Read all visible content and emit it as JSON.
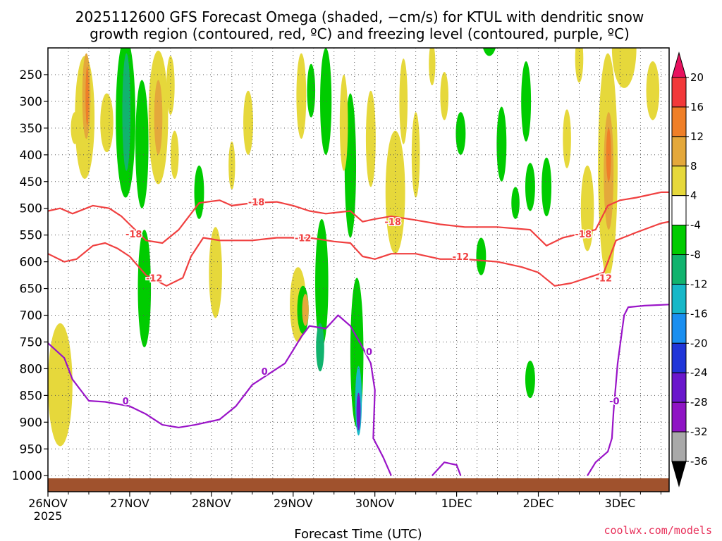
{
  "chart_data": {
    "type": "heatmap",
    "title_lines": [
      "2025112600 GFS Forecast Omega (shaded, −cm/s) for KTUL with dendritic snow",
      "growth region (contoured, red, ºC) and freezing level (contoured, purple, ºC)"
    ],
    "xlabel": "Forecast Time (UTC)",
    "year_label": "2025",
    "credit": "coolwx.com/models",
    "x_range_days": [
      0,
      7.6
    ],
    "x_ticks": [
      {
        "day": 0,
        "label": "26NOV"
      },
      {
        "day": 1,
        "label": "27NOV"
      },
      {
        "day": 2,
        "label": "28NOV"
      },
      {
        "day": 3,
        "label": "29NOV"
      },
      {
        "day": 4,
        "label": "30NOV"
      },
      {
        "day": 5,
        "label": "1DEC"
      },
      {
        "day": 6,
        "label": "2DEC"
      },
      {
        "day": 7,
        "label": "3DEC"
      }
    ],
    "y_range_hpa": [
      200,
      1030
    ],
    "y_ticks": [
      250,
      300,
      350,
      400,
      450,
      500,
      550,
      600,
      650,
      700,
      750,
      800,
      850,
      900,
      950,
      1000
    ],
    "colorbar": {
      "labels": [
        "20",
        "16",
        "12",
        "8",
        "4",
        "-4",
        "-8",
        "-12",
        "-16",
        "-20",
        "-24",
        "-28",
        "-32",
        "-36"
      ],
      "colors": [
        "#e8115e",
        "#f2393a",
        "#ef7f28",
        "#e4a83b",
        "#e6d83b",
        "#ffffff",
        "#00cc00",
        "#11b36e",
        "#17b8c8",
        "#1a8ff0",
        "#2035d8",
        "#6a17cc",
        "#8f14c4",
        "#a9a9a9",
        "#000000"
      ]
    },
    "omega_blobs": [
      {
        "day": 0.45,
        "p": 330,
        "w": 0.12,
        "h": 230,
        "c": "#e6d83b"
      },
      {
        "day": 0.47,
        "p": 290,
        "w": 0.05,
        "h": 160,
        "c": "#e4a83b"
      },
      {
        "day": 0.48,
        "p": 290,
        "w": 0.02,
        "h": 110,
        "c": "#ef7f28"
      },
      {
        "day": 0.72,
        "p": 340,
        "w": 0.08,
        "h": 110,
        "c": "#e6d83b"
      },
      {
        "day": 0.15,
        "p": 830,
        "w": 0.15,
        "h": 230,
        "c": "#e6d83b"
      },
      {
        "day": 0.33,
        "p": 350,
        "w": 0.05,
        "h": 60,
        "c": "#e6d83b"
      },
      {
        "day": 0.95,
        "p": 330,
        "w": 0.12,
        "h": 300,
        "c": "#00cc00"
      },
      {
        "day": 0.96,
        "p": 320,
        "w": 0.05,
        "h": 220,
        "c": "#11b36e"
      },
      {
        "day": 1.15,
        "p": 380,
        "w": 0.08,
        "h": 240,
        "c": "#00cc00"
      },
      {
        "day": 1.35,
        "p": 330,
        "w": 0.12,
        "h": 250,
        "c": "#e6d83b"
      },
      {
        "day": 1.35,
        "p": 330,
        "w": 0.05,
        "h": 140,
        "c": "#e4a83b"
      },
      {
        "day": 1.5,
        "p": 270,
        "w": 0.05,
        "h": 110,
        "c": "#e6d83b"
      },
      {
        "day": 1.18,
        "p": 650,
        "w": 0.08,
        "h": 220,
        "c": "#00cc00"
      },
      {
        "day": 1.55,
        "p": 400,
        "w": 0.05,
        "h": 90,
        "c": "#e6d83b"
      },
      {
        "day": 1.85,
        "p": 470,
        "w": 0.06,
        "h": 100,
        "c": "#00cc00"
      },
      {
        "day": 2.45,
        "p": 340,
        "w": 0.06,
        "h": 120,
        "c": "#e6d83b"
      },
      {
        "day": 2.05,
        "p": 620,
        "w": 0.08,
        "h": 170,
        "c": "#e6d83b"
      },
      {
        "day": 2.25,
        "p": 420,
        "w": 0.04,
        "h": 90,
        "c": "#e6d83b"
      },
      {
        "day": 3.1,
        "p": 290,
        "w": 0.06,
        "h": 160,
        "c": "#e6d83b"
      },
      {
        "day": 3.22,
        "p": 280,
        "w": 0.05,
        "h": 100,
        "c": "#00cc00"
      },
      {
        "day": 3.4,
        "p": 300,
        "w": 0.07,
        "h": 200,
        "c": "#00cc00"
      },
      {
        "day": 3.06,
        "p": 680,
        "w": 0.1,
        "h": 140,
        "c": "#e6d83b"
      },
      {
        "day": 3.12,
        "p": 690,
        "w": 0.07,
        "h": 90,
        "c": "#00cc00"
      },
      {
        "day": 3.15,
        "p": 690,
        "w": 0.04,
        "h": 60,
        "c": "#e4a83b"
      },
      {
        "day": 3.35,
        "p": 640,
        "w": 0.08,
        "h": 240,
        "c": "#00cc00"
      },
      {
        "day": 3.33,
        "p": 760,
        "w": 0.05,
        "h": 90,
        "c": "#11b36e"
      },
      {
        "day": 3.7,
        "p": 420,
        "w": 0.07,
        "h": 270,
        "c": "#00cc00"
      },
      {
        "day": 3.78,
        "p": 770,
        "w": 0.08,
        "h": 280,
        "c": "#00cc00"
      },
      {
        "day": 3.8,
        "p": 860,
        "w": 0.04,
        "h": 130,
        "c": "#17b8c8"
      },
      {
        "day": 3.8,
        "p": 880,
        "w": 0.025,
        "h": 70,
        "c": "#6a17cc"
      },
      {
        "day": 3.62,
        "p": 340,
        "w": 0.05,
        "h": 180,
        "c": "#e6d83b"
      },
      {
        "day": 3.95,
        "p": 370,
        "w": 0.06,
        "h": 180,
        "c": "#e6d83b"
      },
      {
        "day": 4.25,
        "p": 470,
        "w": 0.12,
        "h": 230,
        "c": "#e6d83b"
      },
      {
        "day": 4.35,
        "p": 300,
        "w": 0.05,
        "h": 160,
        "c": "#e6d83b"
      },
      {
        "day": 4.5,
        "p": 400,
        "w": 0.05,
        "h": 160,
        "c": "#e6d83b"
      },
      {
        "day": 4.85,
        "p": 290,
        "w": 0.05,
        "h": 90,
        "c": "#e6d83b"
      },
      {
        "day": 5.05,
        "p": 360,
        "w": 0.06,
        "h": 80,
        "c": "#00cc00"
      },
      {
        "day": 4.7,
        "p": 230,
        "w": 0.04,
        "h": 80,
        "c": "#e6d83b"
      },
      {
        "day": 5.4,
        "p": 175,
        "w": 0.1,
        "h": 80,
        "c": "#00cc00"
      },
      {
        "day": 5.55,
        "p": 380,
        "w": 0.06,
        "h": 140,
        "c": "#00cc00"
      },
      {
        "day": 5.85,
        "p": 300,
        "w": 0.06,
        "h": 150,
        "c": "#00cc00"
      },
      {
        "day": 5.3,
        "p": 590,
        "w": 0.06,
        "h": 70,
        "c": "#00cc00"
      },
      {
        "day": 5.72,
        "p": 490,
        "w": 0.05,
        "h": 60,
        "c": "#00cc00"
      },
      {
        "day": 5.9,
        "p": 460,
        "w": 0.06,
        "h": 90,
        "c": "#00cc00"
      },
      {
        "day": 6.1,
        "p": 460,
        "w": 0.06,
        "h": 110,
        "c": "#00cc00"
      },
      {
        "day": 5.9,
        "p": 820,
        "w": 0.06,
        "h": 70,
        "c": "#00cc00"
      },
      {
        "day": 6.35,
        "p": 370,
        "w": 0.05,
        "h": 110,
        "c": "#e6d83b"
      },
      {
        "day": 6.5,
        "p": 220,
        "w": 0.05,
        "h": 90,
        "c": "#e6d83b"
      },
      {
        "day": 6.6,
        "p": 500,
        "w": 0.08,
        "h": 160,
        "c": "#e6d83b"
      },
      {
        "day": 6.85,
        "p": 420,
        "w": 0.12,
        "h": 420,
        "c": "#e6d83b"
      },
      {
        "day": 6.86,
        "p": 430,
        "w": 0.06,
        "h": 220,
        "c": "#e4a83b"
      },
      {
        "day": 6.86,
        "p": 400,
        "w": 0.03,
        "h": 100,
        "c": "#ef7f28"
      },
      {
        "day": 7.05,
        "p": 200,
        "w": 0.15,
        "h": 150,
        "c": "#e6d83b"
      },
      {
        "day": 7.4,
        "p": 280,
        "w": 0.08,
        "h": 110,
        "c": "#e6d83b"
      }
    ],
    "contours": [
      {
        "label": "-18",
        "color": "#f04040",
        "points": [
          [
            0,
            505
          ],
          [
            0.15,
            500
          ],
          [
            0.3,
            510
          ],
          [
            0.55,
            495
          ],
          [
            0.75,
            500
          ],
          [
            0.9,
            515
          ],
          [
            1.0,
            530
          ],
          [
            1.2,
            560
          ],
          [
            1.4,
            565
          ],
          [
            1.6,
            540
          ],
          [
            1.75,
            510
          ],
          [
            1.85,
            490
          ],
          [
            2.1,
            485
          ],
          [
            2.25,
            495
          ],
          [
            2.5,
            490
          ],
          [
            2.8,
            488
          ],
          [
            3.0,
            495
          ],
          [
            3.2,
            505
          ],
          [
            3.4,
            510
          ],
          [
            3.7,
            505
          ],
          [
            3.85,
            525
          ],
          [
            4.0,
            520
          ],
          [
            4.2,
            515
          ],
          [
            4.5,
            522
          ],
          [
            4.8,
            530
          ],
          [
            5.1,
            535
          ],
          [
            5.5,
            535
          ],
          [
            5.9,
            540
          ],
          [
            6.1,
            570
          ],
          [
            6.3,
            555
          ],
          [
            6.5,
            548
          ],
          [
            6.7,
            540
          ],
          [
            6.85,
            495
          ],
          [
            7.0,
            485
          ],
          [
            7.2,
            480
          ],
          [
            7.5,
            470
          ],
          [
            7.6,
            470
          ]
        ]
      },
      {
        "label": "-12",
        "color": "#f04040",
        "points": [
          [
            0,
            585
          ],
          [
            0.2,
            600
          ],
          [
            0.35,
            595
          ],
          [
            0.55,
            570
          ],
          [
            0.7,
            565
          ],
          [
            0.85,
            575
          ],
          [
            1.0,
            590
          ],
          [
            1.2,
            625
          ],
          [
            1.45,
            645
          ],
          [
            1.65,
            630
          ],
          [
            1.75,
            590
          ],
          [
            1.9,
            555
          ],
          [
            2.1,
            560
          ],
          [
            2.3,
            560
          ],
          [
            2.5,
            560
          ],
          [
            2.8,
            555
          ],
          [
            3.0,
            555
          ],
          [
            3.2,
            555
          ],
          [
            3.5,
            562
          ],
          [
            3.7,
            565
          ],
          [
            3.85,
            590
          ],
          [
            4.0,
            595
          ],
          [
            4.2,
            585
          ],
          [
            4.5,
            585
          ],
          [
            4.8,
            595
          ],
          [
            5.1,
            595
          ],
          [
            5.5,
            600
          ],
          [
            5.8,
            610
          ],
          [
            6.0,
            620
          ],
          [
            6.2,
            645
          ],
          [
            6.4,
            640
          ],
          [
            6.6,
            630
          ],
          [
            6.8,
            620
          ],
          [
            6.95,
            560
          ],
          [
            7.2,
            545
          ],
          [
            7.5,
            528
          ],
          [
            7.6,
            525
          ]
        ]
      },
      {
        "label": "0",
        "color": "#9a14c8",
        "points": [
          [
            0,
            752
          ],
          [
            0.2,
            780
          ],
          [
            0.3,
            820
          ],
          [
            0.5,
            860
          ],
          [
            0.7,
            862
          ],
          [
            1.0,
            870
          ],
          [
            1.2,
            885
          ],
          [
            1.4,
            905
          ],
          [
            1.6,
            910
          ],
          [
            1.8,
            905
          ],
          [
            2.1,
            895
          ],
          [
            2.3,
            870
          ],
          [
            2.5,
            830
          ],
          [
            2.7,
            810
          ],
          [
            2.9,
            790
          ],
          [
            3.0,
            765
          ],
          [
            3.1,
            740
          ],
          [
            3.2,
            720
          ],
          [
            3.4,
            725
          ],
          [
            3.55,
            700
          ],
          [
            3.7,
            720
          ],
          [
            3.85,
            760
          ],
          [
            3.95,
            790
          ],
          [
            4.0,
            840
          ],
          [
            3.98,
            930
          ],
          [
            4.1,
            965
          ],
          [
            4.2,
            1000
          ]
        ]
      },
      {
        "label": "",
        "color": "#9a14c8",
        "points": [
          [
            4.7,
            1000
          ],
          [
            4.85,
            975
          ],
          [
            5.0,
            980
          ],
          [
            5.05,
            1000
          ]
        ]
      },
      {
        "label": "0",
        "color": "#9a14c8",
        "points": [
          [
            6.6,
            1000
          ],
          [
            6.7,
            975
          ],
          [
            6.85,
            955
          ],
          [
            6.9,
            930
          ],
          [
            6.92,
            880
          ],
          [
            6.97,
            790
          ],
          [
            7.05,
            700
          ],
          [
            7.1,
            685
          ],
          [
            7.3,
            682
          ],
          [
            7.6,
            680
          ]
        ]
      }
    ],
    "contour_labels": [
      {
        "text": "-18",
        "day": 2.55,
        "p": 488,
        "color": "#f04040"
      },
      {
        "text": "-18",
        "day": 1.05,
        "p": 548,
        "color": "#f04040"
      },
      {
        "text": "-18",
        "day": 4.22,
        "p": 525,
        "color": "#f04040"
      },
      {
        "text": "-18",
        "day": 6.55,
        "p": 548,
        "color": "#f04040"
      },
      {
        "text": "-12",
        "day": 1.3,
        "p": 630,
        "color": "#f04040"
      },
      {
        "text": "-12",
        "day": 3.12,
        "p": 555,
        "color": "#f04040"
      },
      {
        "text": "-12",
        "day": 5.05,
        "p": 590,
        "color": "#f04040"
      },
      {
        "text": "-12",
        "day": 6.8,
        "p": 630,
        "color": "#f04040"
      },
      {
        "text": "0",
        "day": 0.95,
        "p": 860,
        "color": "#9a14c8"
      },
      {
        "text": "0",
        "day": 2.65,
        "p": 805,
        "color": "#9a14c8"
      },
      {
        "text": "0",
        "day": 3.93,
        "p": 768,
        "color": "#9a14c8"
      },
      {
        "text": "-0",
        "day": 6.93,
        "p": 860,
        "color": "#9a14c8"
      }
    ]
  }
}
